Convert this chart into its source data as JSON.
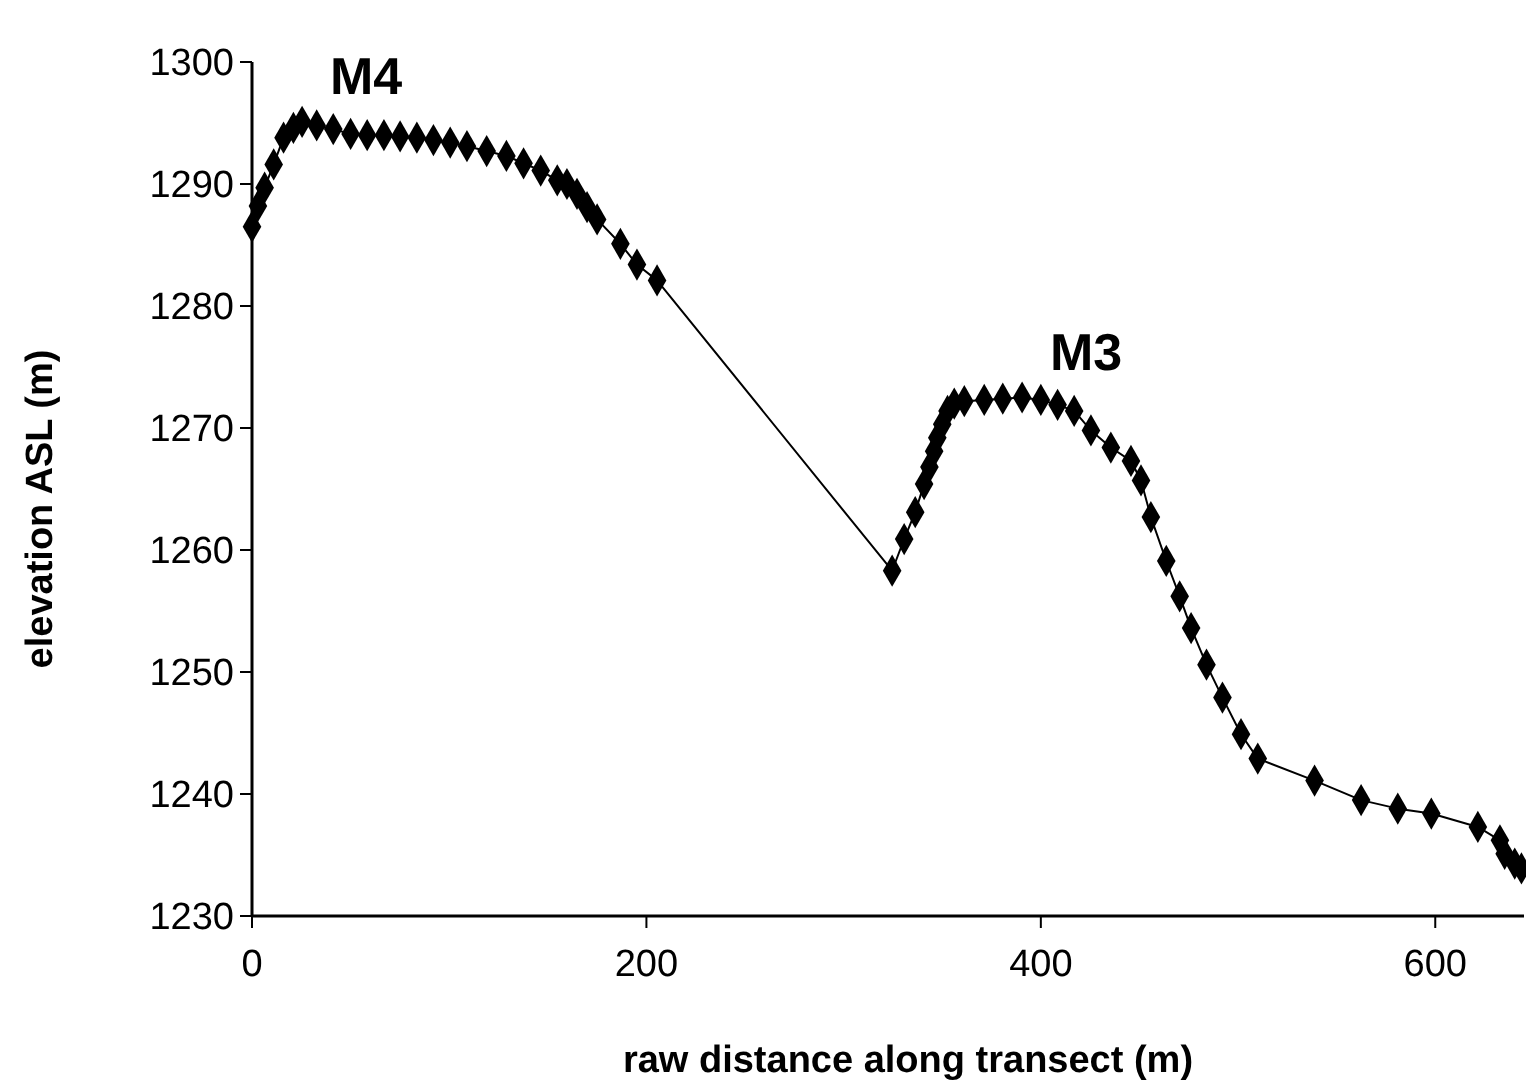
{
  "chart_data": {
    "type": "line",
    "xlabel": "raw distance along transect (m)",
    "ylabel": "elevation ASL (m)",
    "x": [
      0,
      3,
      6.4,
      11,
      16,
      21,
      25.4,
      32.8,
      41.2,
      50,
      58.4,
      66.9,
      75.1,
      83.6,
      92,
      100.5,
      109,
      119,
      129,
      137.7,
      146.4,
      154.8,
      159.7,
      164.8,
      169.9,
      175,
      186.8,
      195.2,
      205.4,
      324.6,
      330.7,
      336.3,
      340.8,
      343.5,
      345.9,
      347.5,
      350,
      352.7,
      356.1,
      361.2,
      371.3,
      380.7,
      390.5,
      400,
      408.5,
      416.9,
      425.4,
      435.5,
      445.7,
      450.8,
      455.8,
      463.6,
      470.4,
      476.2,
      484,
      492.1,
      501.5,
      510,
      538.8,
      562.4,
      581,
      598,
      621.6,
      632.8,
      635.2,
      640.3,
      643.7
    ],
    "series": [
      {
        "color": "#000000",
        "values": [
          1286.5,
          1288.2,
          1289.7,
          1291.6,
          1293.8,
          1294.6,
          1295.1,
          1294.8,
          1294.5,
          1294.1,
          1294,
          1294,
          1293.9,
          1293.8,
          1293.6,
          1293.4,
          1293.1,
          1292.7,
          1292.3,
          1291.7,
          1291.1,
          1290.3,
          1290,
          1289.2,
          1288.1,
          1287.1,
          1285.1,
          1283.4,
          1282.1,
          1258.3,
          1260.9,
          1263.1,
          1265.4,
          1266.8,
          1268.1,
          1269.2,
          1270.3,
          1271.4,
          1272,
          1272.2,
          1272.3,
          1272.4,
          1272.5,
          1272.3,
          1271.9,
          1271.4,
          1269.8,
          1268.4,
          1267.3,
          1265.7,
          1262.7,
          1259.1,
          1256.2,
          1253.6,
          1250.6,
          1247.9,
          1244.9,
          1242.9,
          1241.1,
          1239.5,
          1238.8,
          1238.4,
          1237.3,
          1236.2,
          1235.1,
          1234.3,
          1233.9
        ]
      }
    ],
    "xlim": [
      0,
      645
    ],
    "xticks": [
      0,
      200,
      400,
      600
    ],
    "ylim": [
      1230,
      1300
    ],
    "yticks": [
      1230,
      1240,
      1250,
      1260,
      1270,
      1280,
      1290,
      1300
    ],
    "marker": "diamond",
    "line_style": "solid",
    "grid": false,
    "annotations": [
      "M4",
      "M3"
    ]
  }
}
